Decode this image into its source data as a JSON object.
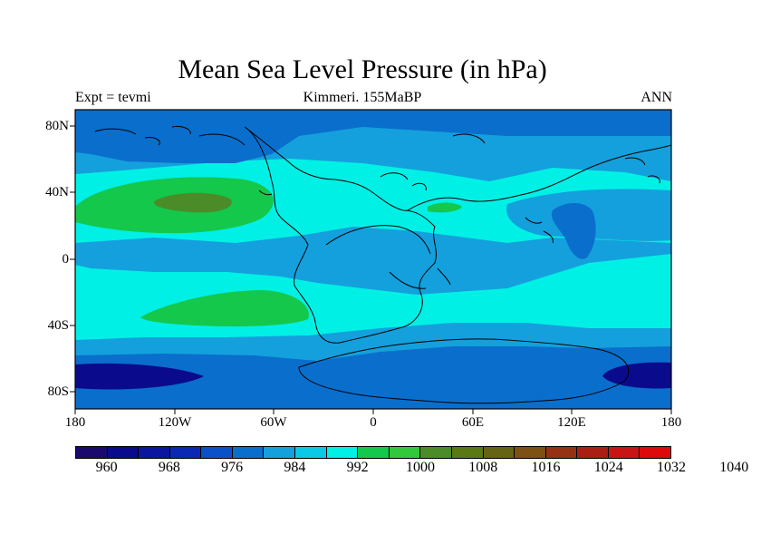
{
  "title": "Mean Sea Level Pressure (in hPa)",
  "subtitle_left": "Expt = tevmi",
  "subtitle_center": "Kimmeri. 155MaBP",
  "subtitle_right": "ANN",
  "lat_ticks": [
    "80N",
    "40N",
    "0",
    "40S",
    "80S"
  ],
  "lon_ticks": [
    "180",
    "120W",
    "60W",
    "0",
    "60E",
    "120E",
    "180"
  ],
  "colorbar": {
    "colors": [
      "#1a0a6e",
      "#0a0a8c",
      "#0a16a0",
      "#0a28b4",
      "#0a50c8",
      "#0a6ecc",
      "#14a0dc",
      "#0ac8e6",
      "#00f0e6",
      "#14c84b",
      "#32c83c",
      "#4b8c28",
      "#5a7814",
      "#646414",
      "#7d5014",
      "#963214",
      "#aa1e14",
      "#c81414",
      "#dc0a0a"
    ],
    "labels": [
      "960",
      "968",
      "976",
      "984",
      "992",
      "1000",
      "1008",
      "1016",
      "1024",
      "1032",
      "1040"
    ]
  },
  "palette": {
    "deep_low": "#0a0a8c",
    "low": "#0a6ecc",
    "mid_low": "#14a0dc",
    "mean": "#00f0e6",
    "high": "#14c84b",
    "higher": "#4b8c28"
  }
}
